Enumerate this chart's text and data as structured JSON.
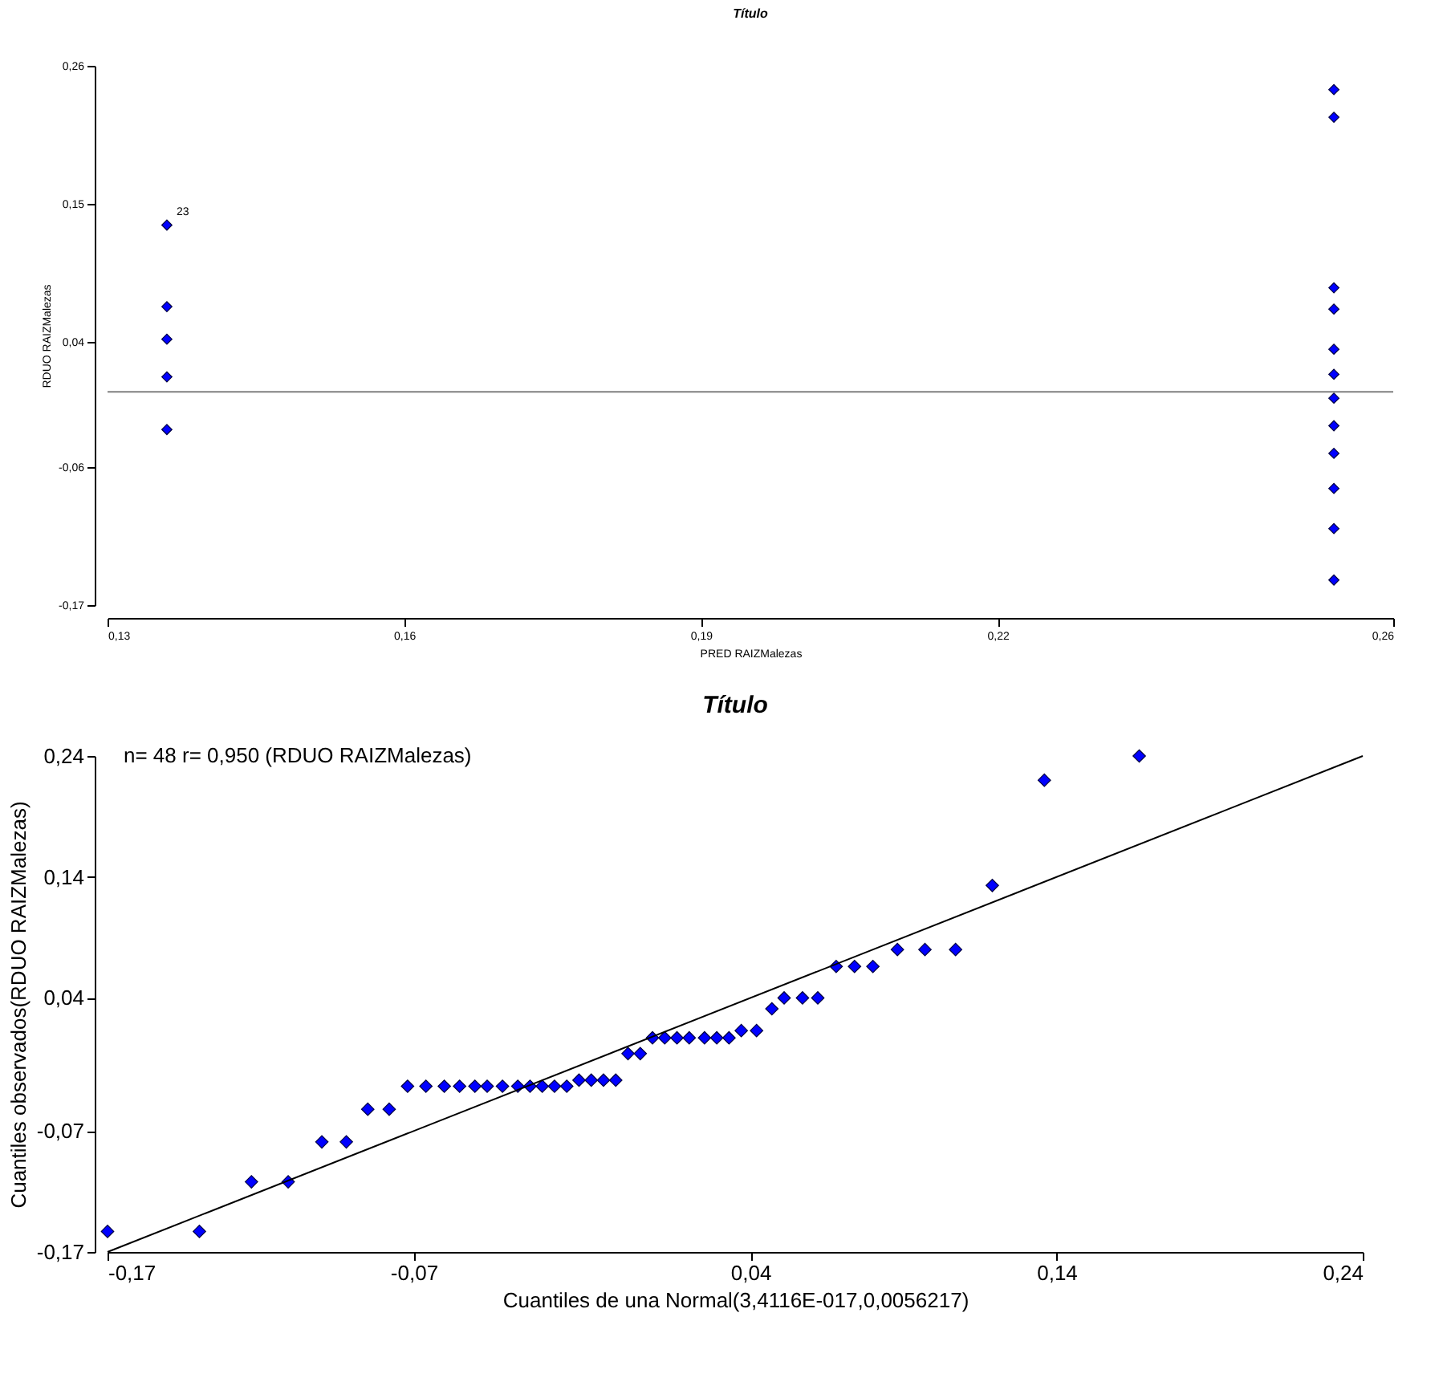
{
  "chart_data": [
    {
      "type": "scatter",
      "title": "Título",
      "xlabel": "PRED RAIZMalezas",
      "ylabel": "RDUO RAIZMalezas",
      "marker": "diamond",
      "grid": false,
      "xlim": [
        0.13,
        0.26
      ],
      "xticks": [
        {
          "value": 0.13,
          "label": "0,13"
        },
        {
          "value": 0.16,
          "label": "0,16"
        },
        {
          "value": 0.19,
          "label": "0,19"
        },
        {
          "value": 0.22,
          "label": "0,22"
        },
        {
          "value": 0.26,
          "label": "0,26"
        }
      ],
      "ylim": [
        -0.17,
        0.26
      ],
      "yticks": [
        {
          "value": -0.17,
          "label": "-0,17"
        },
        {
          "value": -0.06,
          "label": "-0,06"
        },
        {
          "value": 0.04,
          "label": "0,04"
        },
        {
          "value": 0.15,
          "label": "0,15"
        },
        {
          "value": 0.26,
          "label": "0,26"
        }
      ],
      "ref_lines": [
        {
          "axis": "y",
          "value": 0,
          "color": "#808080"
        }
      ],
      "annotations": [
        {
          "text": "23",
          "x": 0.136,
          "y": 0.133
        }
      ],
      "series": [
        {
          "color": "#0000ff",
          "x": [
            0.136,
            0.136,
            0.136,
            0.136,
            0.136,
            0.254,
            0.254,
            0.254,
            0.254,
            0.254,
            0.254,
            0.254,
            0.254,
            0.254,
            0.254,
            0.254,
            0.254
          ],
          "values": [
            0.133,
            0.068,
            0.042,
            0.012,
            -0.03,
            0.241,
            0.219,
            0.083,
            0.066,
            0.034,
            0.014,
            -0.005,
            -0.027,
            -0.049,
            -0.077,
            -0.109,
            -0.15
          ]
        }
      ]
    },
    {
      "type": "scatter",
      "title": "Título",
      "xlabel": "Cuantiles de una Normal(3,4116E-017,0,0056217)",
      "ylabel": "Cuantiles observados(RDUO RAIZMalezas)",
      "marker": "diamond",
      "grid": false,
      "xlim": [
        -0.17,
        0.24
      ],
      "xticks": [
        {
          "value": -0.17,
          "label": "-0,17"
        },
        {
          "value": -0.07,
          "label": "-0,07"
        },
        {
          "value": 0.04,
          "label": "0,04"
        },
        {
          "value": 0.14,
          "label": "0,14"
        },
        {
          "value": 0.24,
          "label": "0,24"
        }
      ],
      "ylim": [
        -0.17,
        0.24
      ],
      "yticks": [
        {
          "value": -0.17,
          "label": "-0,17"
        },
        {
          "value": -0.07,
          "label": "-0,07"
        },
        {
          "value": 0.04,
          "label": "0,04"
        },
        {
          "value": 0.14,
          "label": "0,14"
        },
        {
          "value": 0.24,
          "label": "0,24"
        }
      ],
      "annotations": [
        "n= 48 r= 0,950 (RDUO RAIZMalezas)"
      ],
      "series": [
        {
          "type": "scatter",
          "color": "#0000ff",
          "x": [
            -0.17,
            -0.14,
            -0.123,
            -0.111,
            -0.1,
            -0.092,
            -0.085,
            -0.078,
            -0.072,
            -0.066,
            -0.06,
            -0.055,
            -0.05,
            -0.046,
            -0.041,
            -0.036,
            -0.032,
            -0.028,
            -0.024,
            -0.02,
            -0.016,
            -0.012,
            -0.008,
            -0.004,
            0.0,
            0.004,
            0.008,
            0.012,
            0.016,
            0.02,
            0.025,
            0.029,
            0.033,
            0.037,
            0.042,
            0.047,
            0.051,
            0.057,
            0.062,
            0.068,
            0.074,
            0.08,
            0.088,
            0.097,
            0.107,
            0.119,
            0.136,
            0.167
          ],
          "values": [
            -0.153,
            -0.153,
            -0.112,
            -0.112,
            -0.079,
            -0.079,
            -0.052,
            -0.052,
            -0.033,
            -0.033,
            -0.033,
            -0.033,
            -0.033,
            -0.033,
            -0.033,
            -0.033,
            -0.033,
            -0.033,
            -0.033,
            -0.033,
            -0.028,
            -0.028,
            -0.028,
            -0.028,
            -0.006,
            -0.006,
            0.007,
            0.007,
            0.007,
            0.007,
            0.007,
            0.007,
            0.007,
            0.013,
            0.013,
            0.031,
            0.04,
            0.04,
            0.04,
            0.066,
            0.066,
            0.066,
            0.08,
            0.08,
            0.08,
            0.133,
            0.22,
            0.24
          ]
        },
        {
          "type": "line",
          "color": "#000000",
          "marker": "none",
          "x": [
            -0.17,
            0.24
          ],
          "values": [
            -0.17,
            0.24
          ]
        }
      ]
    }
  ]
}
